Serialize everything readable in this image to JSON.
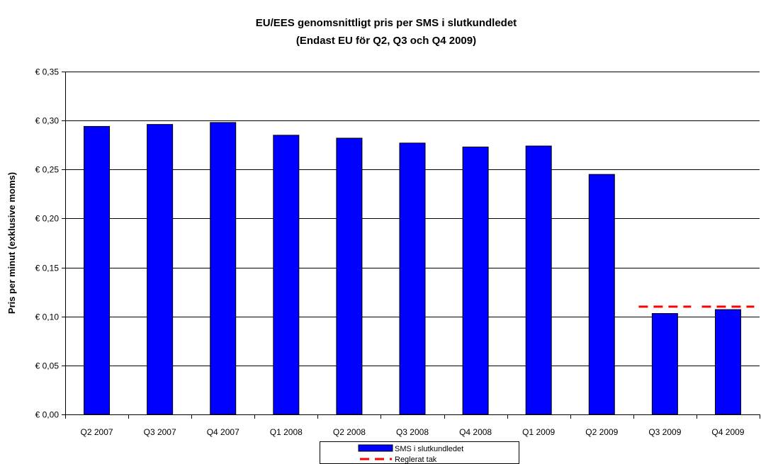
{
  "chart_data": {
    "type": "bar",
    "title": "EU/EES genomsnittligt pris per SMS i slutkundledet",
    "subtitle": "(Endast EU för Q2, Q3 och Q4 2009)",
    "xlabel": "",
    "ylabel": "Pris per minut (exklusive moms)",
    "ylim": [
      0,
      0.35
    ],
    "yticks": [
      0.0,
      0.05,
      0.1,
      0.15,
      0.2,
      0.25,
      0.3,
      0.35
    ],
    "ytick_labels": [
      "€ 0,00",
      "€ 0,05",
      "€ 0,10",
      "€ 0,15",
      "€ 0,20",
      "€ 0,25",
      "€ 0,30",
      "€ 0,35"
    ],
    "grid": true,
    "legend_position": "bottom-center",
    "categories": [
      "Q2 2007",
      "Q3 2007",
      "Q4 2007",
      "Q1 2008",
      "Q2 2008",
      "Q3 2008",
      "Q4 2008",
      "Q1 2009",
      "Q2 2009",
      "Q3 2009",
      "Q4 2009"
    ],
    "series": [
      {
        "name": "SMS i slutkundledet",
        "type": "bar",
        "color": "#0000FF",
        "values": [
          0.294,
          0.296,
          0.298,
          0.285,
          0.282,
          0.277,
          0.273,
          0.274,
          0.245,
          0.103,
          0.107
        ]
      },
      {
        "name": "Reglerat tak",
        "type": "line",
        "style": "dashed",
        "color": "#FF0000",
        "values": [
          null,
          null,
          null,
          null,
          null,
          null,
          null,
          null,
          null,
          0.11,
          0.11
        ]
      }
    ]
  }
}
